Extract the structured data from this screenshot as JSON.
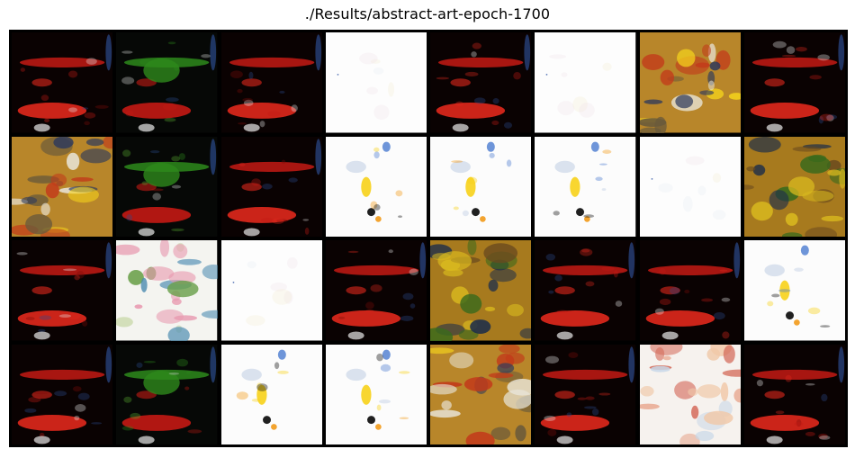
{
  "title": "./Results/abstract-art-epoch-1700",
  "grid": {
    "rows": 4,
    "cols": 8
  },
  "palettes": {
    "dark_red": {
      "bg": "#0a0202",
      "accents": [
        "#c41a14",
        "#e0281c",
        "#7a0c0a",
        "#2b4a8c",
        "#e8e8e8"
      ]
    },
    "dark_green": {
      "bg": "#060806",
      "accents": [
        "#2e8a1c",
        "#c41a14",
        "#5aa832",
        "#2b4a8c",
        "#d8d8d8"
      ]
    },
    "white_blank": {
      "bg": "#fdfdfd",
      "accents": [
        "#f2e6ea",
        "#e8eef4",
        "#f4eed8"
      ]
    },
    "white_splash": {
      "bg": "#fcfcfc",
      "accents": [
        "#f7d21a",
        "#f29a1a",
        "#4a7ad0",
        "#141414",
        "#b8c8e0"
      ]
    },
    "ochre": {
      "bg": "#b8862a",
      "accents": [
        "#f4d21c",
        "#2e3a5c",
        "#e8e4d8",
        "#6a5a3a",
        "#c23a1a"
      ]
    },
    "ochre_green": {
      "bg": "#a77a1e",
      "accents": [
        "#3a6a1c",
        "#d8b81e",
        "#1e2e4a",
        "#6a4a1e"
      ]
    },
    "white_green": {
      "bg": "#f4f4f0",
      "accents": [
        "#6aa04a",
        "#e89ab0",
        "#4a8ab0",
        "#c8d8a8"
      ]
    },
    "white_peach": {
      "bg": "#f6f2ee",
      "accents": [
        "#e8a890",
        "#d46a5a",
        "#c8d8e8",
        "#f0c8a8"
      ]
    }
  },
  "tiles": [
    "dark_red",
    "dark_green",
    "dark_red",
    "white_blank",
    "dark_red",
    "white_blank",
    "ochre",
    "dark_red",
    "ochre",
    "dark_green",
    "dark_red",
    "white_splash",
    "white_splash",
    "white_splash",
    "white_blank",
    "ochre_green",
    "dark_red",
    "white_green",
    "white_blank",
    "dark_red",
    "ochre_green",
    "dark_red",
    "dark_red",
    "white_splash",
    "dark_red",
    "dark_green",
    "white_splash",
    "white_splash",
    "ochre",
    "dark_red",
    "white_peach",
    "dark_red"
  ]
}
